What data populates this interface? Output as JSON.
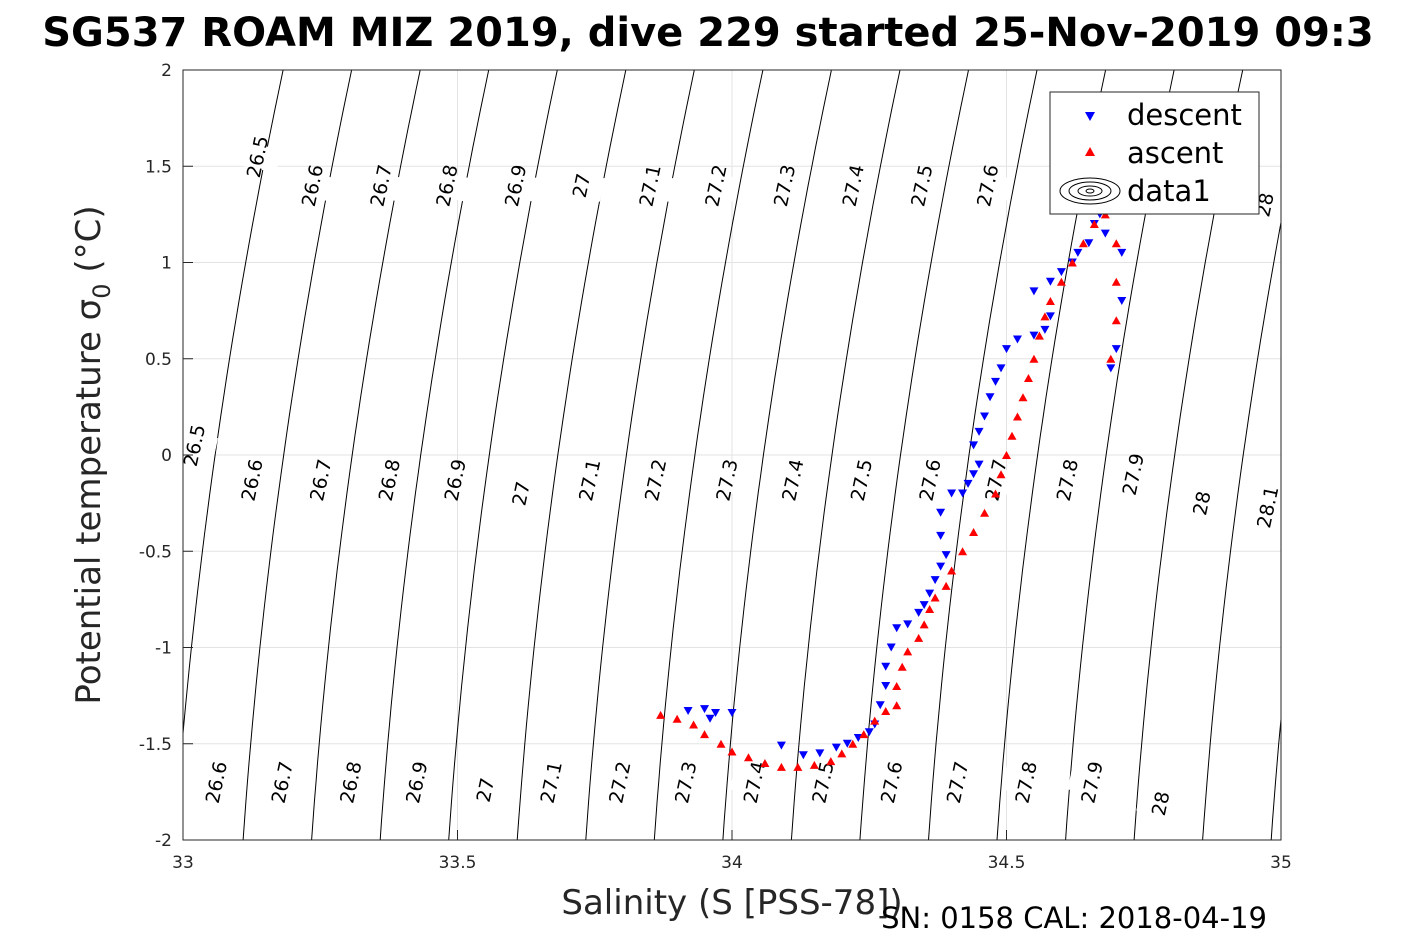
{
  "chart_data": {
    "type": "scatter",
    "title": "SG537 ROAM MIZ 2019, dive 229 started 25-Nov-2019 09:3",
    "xlabel": "Salinity (S [PSS-78])",
    "ylabel": "Potential temperature σ",
    "ylabel_subscript": "0",
    "ylabel_suffix": " (°C)",
    "xlim": [
      33,
      35
    ],
    "ylim": [
      -2,
      2
    ],
    "xticks": [
      "33",
      "33.5",
      "34",
      "34.5",
      "35"
    ],
    "yticks": [
      "-2",
      "-1.5",
      "-1",
      "-0.5",
      "0",
      "0.5",
      "1",
      "1.5",
      "2"
    ],
    "grid": true,
    "legend": {
      "placement": "top-right",
      "entries": [
        "descent",
        "ascent",
        "data1"
      ]
    },
    "colors": {
      "descent": "#0000ff",
      "ascent": "#ff0000",
      "contour": "#000000",
      "grid": "#e3e3e3"
    },
    "footer": "SN: 0158  CAL: 2018-04-19",
    "density_contours": {
      "levels": [
        26.5,
        26.6,
        26.7,
        26.8,
        26.9,
        27.0,
        27.1,
        27.2,
        27.3,
        27.4,
        27.5,
        27.6,
        27.7,
        27.8,
        27.9,
        28.0,
        28.1
      ],
      "labels": [
        {
          "text": "26.5",
          "s": 33.135,
          "t": 1.55
        },
        {
          "text": "26.6",
          "s": 33.235,
          "t": 1.4
        },
        {
          "text": "26.7",
          "s": 33.36,
          "t": 1.4
        },
        {
          "text": "26.8",
          "s": 33.48,
          "t": 1.4
        },
        {
          "text": "26.9",
          "s": 33.605,
          "t": 1.4
        },
        {
          "text": "27",
          "s": 33.725,
          "t": 1.4
        },
        {
          "text": "27.1",
          "s": 33.85,
          "t": 1.4
        },
        {
          "text": "27.2",
          "s": 33.97,
          "t": 1.4
        },
        {
          "text": "27.3",
          "s": 34.095,
          "t": 1.4
        },
        {
          "text": "27.4",
          "s": 34.22,
          "t": 1.4
        },
        {
          "text": "27.5",
          "s": 34.345,
          "t": 1.4
        },
        {
          "text": "27.6",
          "s": 34.465,
          "t": 1.4
        },
        {
          "text": "28",
          "s": 34.97,
          "t": 1.3
        },
        {
          "text": "26.5",
          "s": 33.02,
          "t": 0.05
        },
        {
          "text": "26.6",
          "s": 33.125,
          "t": -0.13
        },
        {
          "text": "26.7",
          "s": 33.25,
          "t": -0.13
        },
        {
          "text": "26.8",
          "s": 33.375,
          "t": -0.13
        },
        {
          "text": "26.9",
          "s": 33.495,
          "t": -0.13
        },
        {
          "text": "27",
          "s": 33.615,
          "t": -0.2
        },
        {
          "text": "27.1",
          "s": 33.74,
          "t": -0.13
        },
        {
          "text": "27.2",
          "s": 33.86,
          "t": -0.13
        },
        {
          "text": "27.3",
          "s": 33.99,
          "t": -0.13
        },
        {
          "text": "27.4",
          "s": 34.11,
          "t": -0.13
        },
        {
          "text": "27.5",
          "s": 34.235,
          "t": -0.13
        },
        {
          "text": "27.6",
          "s": 34.36,
          "t": -0.13
        },
        {
          "text": "27.7",
          "s": 34.48,
          "t": -0.13
        },
        {
          "text": "27.8",
          "s": 34.61,
          "t": -0.13
        },
        {
          "text": "27.9",
          "s": 34.73,
          "t": -0.1
        },
        {
          "text": "28",
          "s": 34.855,
          "t": -0.25
        },
        {
          "text": "28.1",
          "s": 34.975,
          "t": -0.27
        },
        {
          "text": "26.6",
          "s": 33.06,
          "t": -1.7
        },
        {
          "text": "26.7",
          "s": 33.18,
          "t": -1.7
        },
        {
          "text": "26.8",
          "s": 33.305,
          "t": -1.7
        },
        {
          "text": "26.9",
          "s": 33.425,
          "t": -1.7
        },
        {
          "text": "27",
          "s": 33.55,
          "t": -1.74
        },
        {
          "text": "27.1",
          "s": 33.67,
          "t": -1.7
        },
        {
          "text": "27.2",
          "s": 33.795,
          "t": -1.7
        },
        {
          "text": "27.3",
          "s": 33.915,
          "t": -1.7
        },
        {
          "text": "27.4",
          "s": 34.04,
          "t": -1.7
        },
        {
          "text": "27.5",
          "s": 34.165,
          "t": -1.7
        },
        {
          "text": "27.6",
          "s": 34.29,
          "t": -1.7
        },
        {
          "text": "27.7",
          "s": 34.41,
          "t": -1.7
        },
        {
          "text": "27.8",
          "s": 34.535,
          "t": -1.7
        },
        {
          "text": "27.9",
          "s": 34.655,
          "t": -1.7
        },
        {
          "text": "28",
          "s": 34.78,
          "t": -1.81
        }
      ]
    },
    "series": [
      {
        "name": "descent",
        "marker": "triangle-down",
        "points": [
          [
            33.92,
            -1.33
          ],
          [
            33.95,
            -1.32
          ],
          [
            33.97,
            -1.34
          ],
          [
            34.0,
            -1.34
          ],
          [
            33.96,
            -1.37
          ],
          [
            34.09,
            -1.51
          ],
          [
            34.13,
            -1.56
          ],
          [
            34.16,
            -1.55
          ],
          [
            34.19,
            -1.52
          ],
          [
            34.21,
            -1.5
          ],
          [
            34.23,
            -1.47
          ],
          [
            34.25,
            -1.44
          ],
          [
            34.26,
            -1.4
          ],
          [
            34.27,
            -1.3
          ],
          [
            34.28,
            -1.2
          ],
          [
            34.28,
            -1.1
          ],
          [
            34.29,
            -1.0
          ],
          [
            34.3,
            -0.9
          ],
          [
            34.32,
            -0.88
          ],
          [
            34.34,
            -0.82
          ],
          [
            34.35,
            -0.78
          ],
          [
            34.36,
            -0.72
          ],
          [
            34.37,
            -0.65
          ],
          [
            34.38,
            -0.58
          ],
          [
            34.39,
            -0.52
          ],
          [
            34.38,
            -0.42
          ],
          [
            34.38,
            -0.3
          ],
          [
            34.4,
            -0.2
          ],
          [
            34.42,
            -0.2
          ],
          [
            34.43,
            -0.15
          ],
          [
            34.44,
            -0.1
          ],
          [
            34.45,
            -0.05
          ],
          [
            34.44,
            0.05
          ],
          [
            34.45,
            0.12
          ],
          [
            34.46,
            0.2
          ],
          [
            34.47,
            0.3
          ],
          [
            34.48,
            0.38
          ],
          [
            34.49,
            0.45
          ],
          [
            34.5,
            0.55
          ],
          [
            34.52,
            0.6
          ],
          [
            34.55,
            0.62
          ],
          [
            34.57,
            0.65
          ],
          [
            34.58,
            0.72
          ],
          [
            34.55,
            0.85
          ],
          [
            34.58,
            0.9
          ],
          [
            34.6,
            0.95
          ],
          [
            34.62,
            1.0
          ],
          [
            34.63,
            1.05
          ],
          [
            34.65,
            1.1
          ],
          [
            34.66,
            1.2
          ],
          [
            34.67,
            1.25
          ],
          [
            34.68,
            1.15
          ],
          [
            34.71,
            1.05
          ],
          [
            34.71,
            0.8
          ],
          [
            34.7,
            0.55
          ],
          [
            34.69,
            0.45
          ]
        ]
      },
      {
        "name": "ascent",
        "marker": "triangle-up",
        "points": [
          [
            33.87,
            -1.35
          ],
          [
            33.9,
            -1.37
          ],
          [
            33.93,
            -1.4
          ],
          [
            33.95,
            -1.45
          ],
          [
            33.98,
            -1.5
          ],
          [
            34.0,
            -1.54
          ],
          [
            34.03,
            -1.57
          ],
          [
            34.06,
            -1.6
          ],
          [
            34.09,
            -1.62
          ],
          [
            34.12,
            -1.62
          ],
          [
            34.15,
            -1.61
          ],
          [
            34.18,
            -1.59
          ],
          [
            34.2,
            -1.55
          ],
          [
            34.22,
            -1.5
          ],
          [
            34.24,
            -1.45
          ],
          [
            34.26,
            -1.38
          ],
          [
            34.28,
            -1.33
          ],
          [
            34.3,
            -1.3
          ],
          [
            34.3,
            -1.2
          ],
          [
            34.31,
            -1.1
          ],
          [
            34.32,
            -1.02
          ],
          [
            34.34,
            -0.95
          ],
          [
            34.35,
            -0.88
          ],
          [
            34.36,
            -0.8
          ],
          [
            34.37,
            -0.74
          ],
          [
            34.39,
            -0.68
          ],
          [
            34.4,
            -0.6
          ],
          [
            34.42,
            -0.5
          ],
          [
            34.44,
            -0.4
          ],
          [
            34.46,
            -0.3
          ],
          [
            34.48,
            -0.2
          ],
          [
            34.49,
            -0.1
          ],
          [
            34.5,
            0.0
          ],
          [
            34.51,
            0.1
          ],
          [
            34.52,
            0.2
          ],
          [
            34.53,
            0.3
          ],
          [
            34.54,
            0.4
          ],
          [
            34.55,
            0.5
          ],
          [
            34.56,
            0.62
          ],
          [
            34.57,
            0.72
          ],
          [
            34.58,
            0.8
          ],
          [
            34.6,
            0.9
          ],
          [
            34.62,
            1.0
          ],
          [
            34.64,
            1.1
          ],
          [
            34.66,
            1.2
          ],
          [
            34.68,
            1.25
          ],
          [
            34.7,
            1.1
          ],
          [
            34.7,
            0.9
          ],
          [
            34.7,
            0.7
          ],
          [
            34.69,
            0.5
          ]
        ]
      }
    ]
  }
}
